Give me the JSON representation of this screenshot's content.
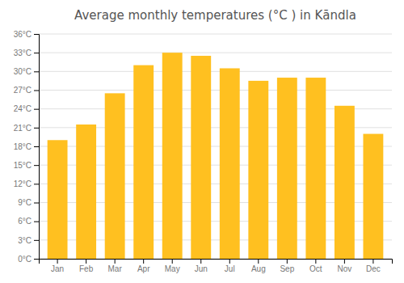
{
  "chart_data": {
    "type": "bar",
    "title": "Average monthly temperatures (°C ) in Kāndla",
    "categories": [
      "Jan",
      "Feb",
      "Mar",
      "Apr",
      "May",
      "Jun",
      "Jul",
      "Aug",
      "Sep",
      "Oct",
      "Nov",
      "Dec"
    ],
    "values": [
      19.0,
      21.5,
      26.5,
      31.0,
      33.0,
      32.5,
      30.5,
      28.5,
      29.0,
      29.0,
      24.5,
      20.0
    ],
    "color": "#FFC020",
    "ylim": [
      0,
      36
    ],
    "yticks": [
      {
        "value": 0,
        "label": "0°C"
      },
      {
        "value": 3,
        "label": "3°C"
      },
      {
        "value": 6,
        "label": "6°C"
      },
      {
        "value": 9,
        "label": "9°C"
      },
      {
        "value": 12,
        "label": "12°C"
      },
      {
        "value": 15,
        "label": "15°C"
      },
      {
        "value": 18,
        "label": "18°C"
      },
      {
        "value": 21,
        "label": "21°C"
      },
      {
        "value": 24,
        "label": "24°C"
      },
      {
        "value": 27,
        "label": "27°C"
      },
      {
        "value": 30,
        "label": "30°C"
      },
      {
        "value": 33,
        "label": "33°C"
      },
      {
        "value": 36,
        "label": "36°C"
      }
    ],
    "grid": true
  }
}
